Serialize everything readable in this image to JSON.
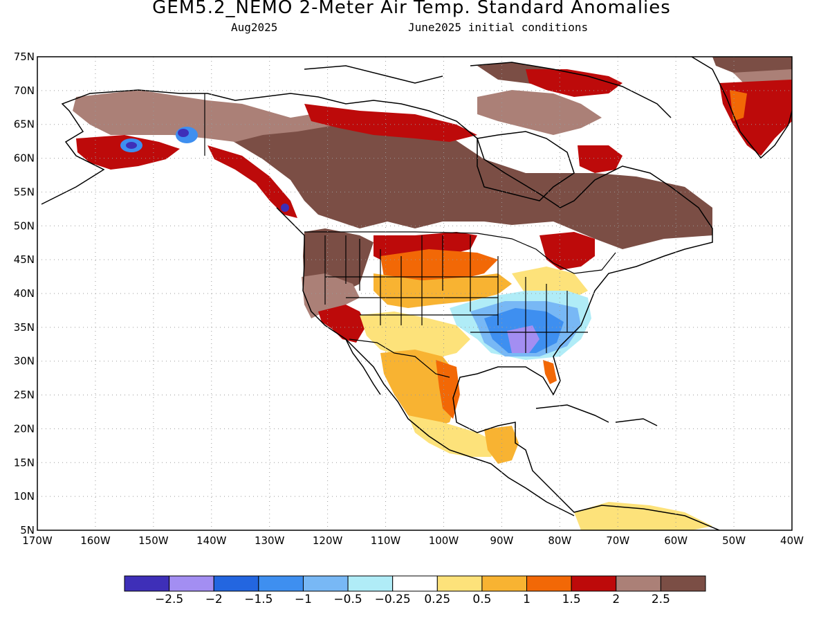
{
  "header": {
    "title": "GEM5.2_NEMO 2-Meter Air Temp. Standard Anomalies",
    "month": "Aug2025",
    "init": "June2025 initial conditions"
  },
  "axes": {
    "lat_labels": [
      "75N",
      "70N",
      "65N",
      "60N",
      "55N",
      "50N",
      "45N",
      "40N",
      "35N",
      "30N",
      "25N",
      "20N",
      "15N",
      "10N",
      "5N"
    ],
    "lon_labels": [
      "170W",
      "160W",
      "150W",
      "140W",
      "130W",
      "120W",
      "110W",
      "100W",
      "90W",
      "80W",
      "70W",
      "60W",
      "50W",
      "40W"
    ],
    "lat_range": [
      5,
      75
    ],
    "lon_range": [
      -170,
      -40
    ],
    "grid": "dotted"
  },
  "colorbar": {
    "colors": [
      "#3e2fb8",
      "#a38ef2",
      "#2366e0",
      "#3e8ff0",
      "#78b8f5",
      "#b0ecf7",
      "#ffffff",
      "#fde27a",
      "#f8b332",
      "#f26806",
      "#bd0a0a",
      "#ab8077",
      "#7b4e45"
    ],
    "labels": [
      "-2.5",
      "-2",
      "-1.5",
      "-1",
      "-0.5",
      "-0.25",
      "0.25",
      "0.5",
      "1",
      "1.5",
      "2",
      "2.5"
    ]
  },
  "colors": {
    "strong_warm": "#7b4e45",
    "warm": "#ab8077",
    "red": "#bd0a0a",
    "orange_dark": "#f26806",
    "orange": "#f8b332",
    "yellow": "#fde27a",
    "light_blue": "#b0ecf7",
    "blue": "#78b8f5",
    "mid_blue": "#3e8ff0",
    "deep_blue": "#2366e0",
    "lavender": "#a38ef2",
    "purple": "#3e2fb8"
  }
}
